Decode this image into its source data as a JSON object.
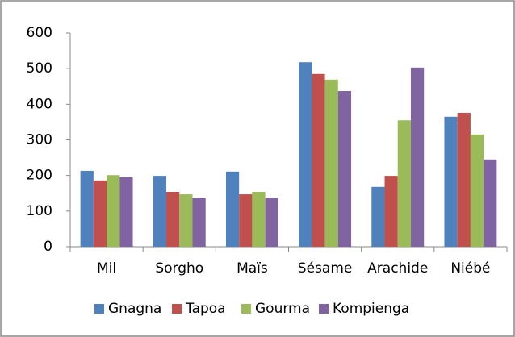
{
  "chart_data": {
    "type": "bar",
    "categories": [
      "Mil",
      "Sorgho",
      "Maïs",
      "Sésame",
      "Arachide",
      "Niébé"
    ],
    "series": [
      {
        "name": "Gnagna",
        "color": "#4f81bd",
        "values": [
          213,
          199,
          211,
          518,
          168,
          365
        ]
      },
      {
        "name": "Tapoa",
        "color": "#c0504d",
        "values": [
          186,
          154,
          147,
          485,
          199,
          376
        ]
      },
      {
        "name": "Gourma",
        "color": "#9bbb59",
        "values": [
          201,
          147,
          154,
          469,
          355,
          315
        ]
      },
      {
        "name": "Kompienga",
        "color": "#8064a2",
        "values": [
          195,
          138,
          138,
          437,
          503,
          245
        ]
      }
    ],
    "ylim": [
      0,
      600
    ],
    "yticks": [
      0,
      100,
      200,
      300,
      400,
      500,
      600
    ],
    "grid": false,
    "legend": "bottom"
  }
}
